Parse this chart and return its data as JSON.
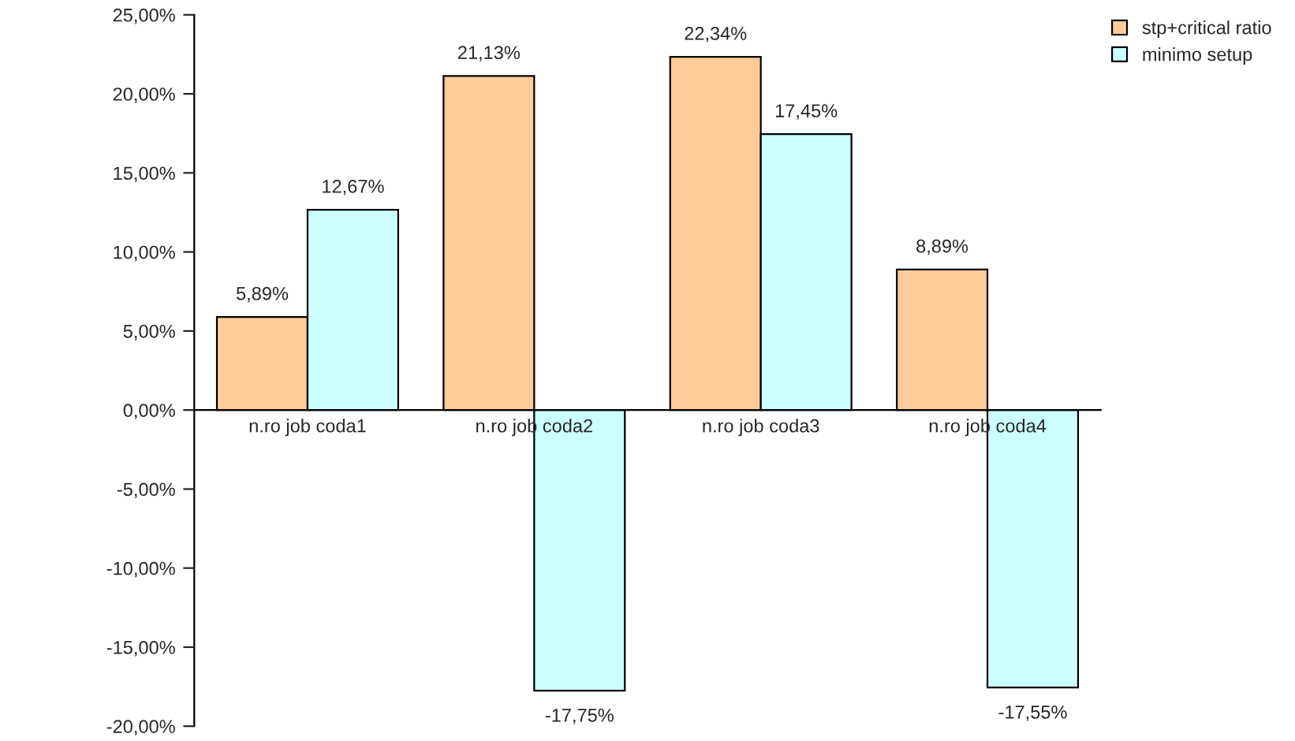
{
  "chart_data": {
    "type": "bar",
    "categories": [
      "n.ro job coda1",
      "n.ro job coda2",
      "n.ro job coda3",
      "n.ro job coda4"
    ],
    "series": [
      {
        "name": "stp+critical ratio",
        "color": "#ffcc99",
        "values": [
          5.89,
          21.13,
          22.34,
          8.89
        ],
        "value_labels": [
          "5,89%",
          "21,13%",
          "22,34%",
          "8,89%"
        ]
      },
      {
        "name": "minimo setup",
        "color": "#ccffff",
        "values": [
          12.67,
          -17.75,
          17.45,
          -17.55
        ],
        "value_labels": [
          "12,67%",
          "-17,75%",
          "17,45%",
          "-17,55%"
        ]
      }
    ],
    "ylim": [
      -20,
      25
    ],
    "yticks": [
      {
        "value": -20,
        "label": "-20,00%"
      },
      {
        "value": -15,
        "label": "-15,00%"
      },
      {
        "value": -10,
        "label": "-10,00%"
      },
      {
        "value": -5,
        "label": "-5,00%"
      },
      {
        "value": 0,
        "label": "0,00%"
      },
      {
        "value": 5,
        "label": "5,00%"
      },
      {
        "value": 10,
        "label": "10,00%"
      },
      {
        "value": 15,
        "label": "15,00%"
      },
      {
        "value": 20,
        "label": "20,00%"
      },
      {
        "value": 25,
        "label": "25,00%"
      }
    ],
    "legend": "top right",
    "grid": false
  }
}
